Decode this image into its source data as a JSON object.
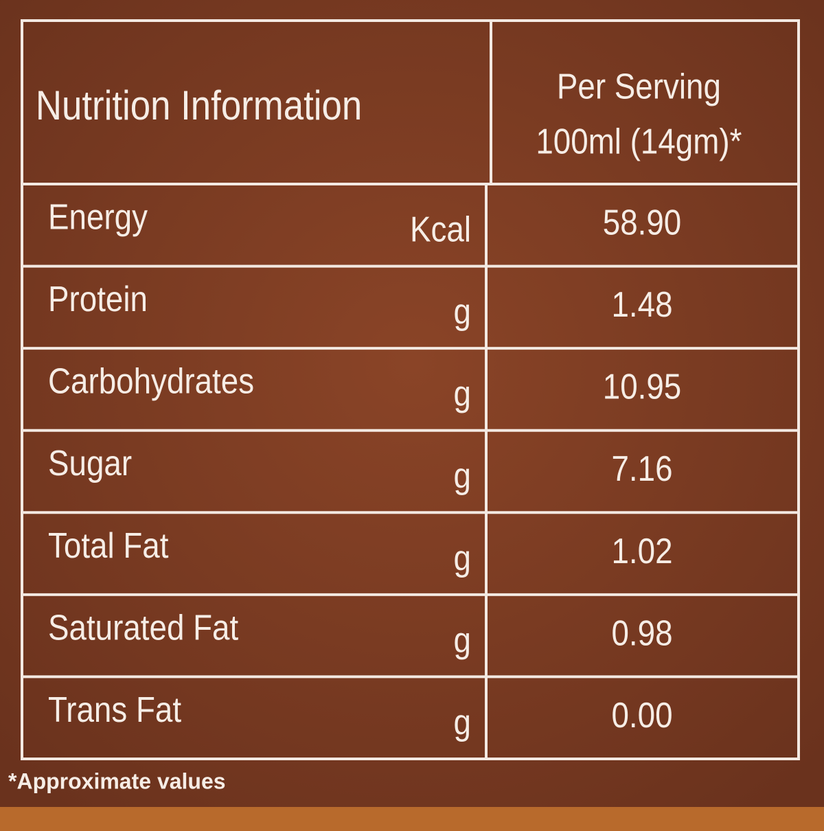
{
  "header": {
    "title": "Nutrition Information",
    "per_serving": [
      "Per Serving",
      "100ml (14gm)*"
    ]
  },
  "rows": [
    [
      "Energy",
      "Kcal",
      "58.90"
    ],
    [
      "Protein",
      "g",
      "1.48"
    ],
    [
      "Carbohydrates",
      "g",
      "10.95"
    ],
    [
      "Sugar",
      "g",
      "7.16"
    ],
    [
      "Total Fat",
      "g",
      "1.02"
    ],
    [
      "Saturated Fat",
      "g",
      "0.98"
    ],
    [
      "Trans Fat",
      "g",
      "0.00"
    ]
  ],
  "footnote": "*Approximate values"
}
